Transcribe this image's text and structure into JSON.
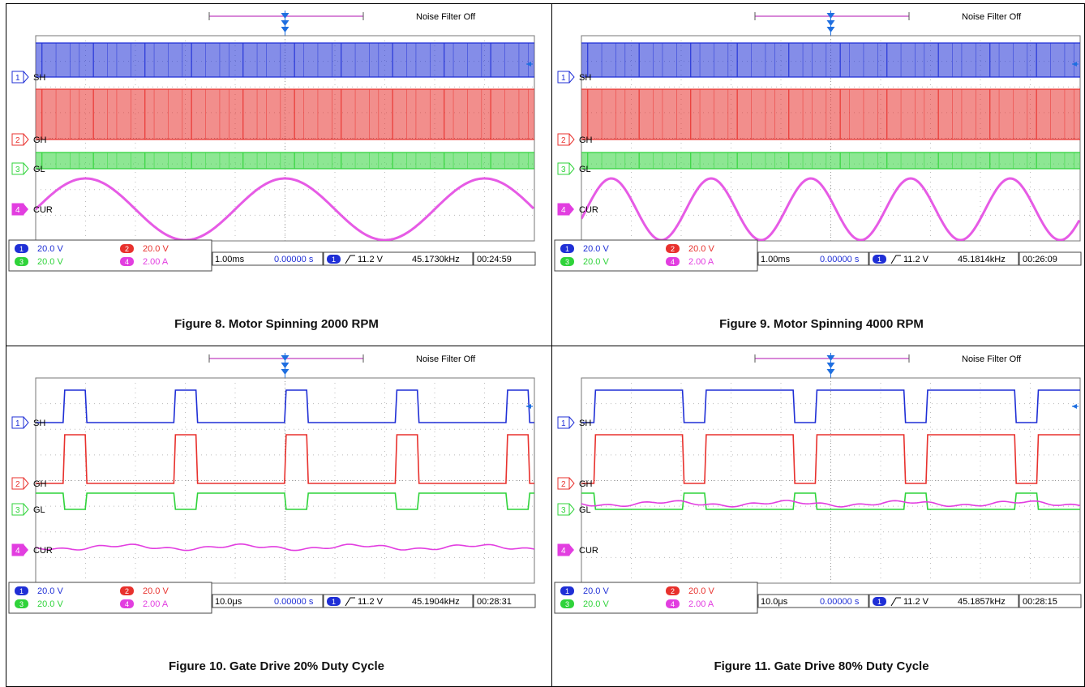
{
  "figures": [
    {
      "caption": "Figure 8. Motor Spinning 2000 RPM",
      "header": "Noise Filter Off",
      "timebase": "1.00ms",
      "delay": "0.00000 s",
      "trigger_channel": "1",
      "trigger_level": "11.2 V",
      "frequency": "45.1730kHz",
      "time": "00:24:59",
      "channels": [
        {
          "id": "1",
          "label": "SH",
          "scale": "20.0 V",
          "color": "#1f2fd6"
        },
        {
          "id": "2",
          "label": "GH",
          "scale": "20.0 V",
          "color": "#e8312d"
        },
        {
          "id": "3",
          "label": "GL",
          "scale": "20.0 V",
          "color": "#2fd33a"
        },
        {
          "id": "4",
          "label": "CUR",
          "scale": "2.00 A",
          "color": "#e23ee0"
        }
      ]
    },
    {
      "caption": "Figure 9. Motor Spinning 4000 RPM",
      "header": "Noise Filter Off",
      "timebase": "1.00ms",
      "delay": "0.00000 s",
      "trigger_channel": "1",
      "trigger_level": "11.2 V",
      "frequency": "45.1814kHz",
      "time": "00:26:09",
      "channels": [
        {
          "id": "1",
          "label": "SH",
          "scale": "20.0 V",
          "color": "#1f2fd6"
        },
        {
          "id": "2",
          "label": "GH",
          "scale": "20.0 V",
          "color": "#e8312d"
        },
        {
          "id": "3",
          "label": "GL",
          "scale": "20.0 V",
          "color": "#2fd33a"
        },
        {
          "id": "4",
          "label": "CUR",
          "scale": "2.00 A",
          "color": "#e23ee0"
        }
      ]
    },
    {
      "caption": "Figure 10. Gate Drive 20% Duty Cycle",
      "header": "Noise Filter Off",
      "timebase": "10.0μs",
      "delay": "0.00000 s",
      "trigger_channel": "1",
      "trigger_level": "11.2 V",
      "frequency": "45.1904kHz",
      "time": "00:28:31",
      "channels": [
        {
          "id": "1",
          "label": "SH",
          "scale": "20.0 V",
          "color": "#1f2fd6"
        },
        {
          "id": "2",
          "label": "GH",
          "scale": "20.0 V",
          "color": "#e8312d"
        },
        {
          "id": "3",
          "label": "GL",
          "scale": "20.0 V",
          "color": "#2fd33a"
        },
        {
          "id": "4",
          "label": "CUR",
          "scale": "2.00 A",
          "color": "#e23ee0"
        }
      ]
    },
    {
      "caption": "Figure 11. Gate Drive 80% Duty Cycle",
      "header": "Noise Filter Off",
      "timebase": "10.0μs",
      "delay": "0.00000 s",
      "trigger_channel": "1",
      "trigger_level": "11.2 V",
      "frequency": "45.1857kHz",
      "time": "00:28:15",
      "channels": [
        {
          "id": "1",
          "label": "SH",
          "scale": "20.0 V",
          "color": "#1f2fd6"
        },
        {
          "id": "2",
          "label": "GH",
          "scale": "20.0 V",
          "color": "#e8312d"
        },
        {
          "id": "3",
          "label": "GL",
          "scale": "20.0 V",
          "color": "#2fd33a"
        },
        {
          "id": "4",
          "label": "CUR",
          "scale": "2.00 A",
          "color": "#e23ee0"
        }
      ]
    }
  ],
  "chart_data": [
    {
      "type": "line",
      "title": "Figure 8. Motor Spinning 2000 RPM",
      "x_unit_per_div": "1.00ms",
      "x_divisions": 10,
      "series": [
        {
          "name": "SH",
          "kind": "dense-pwm",
          "duty": 0.5
        },
        {
          "name": "GH",
          "kind": "dense-pwm",
          "duty": 0.5
        },
        {
          "name": "GL",
          "kind": "dense-pwm",
          "duty": 0.5
        },
        {
          "name": "CUR",
          "kind": "sine",
          "cycles_on_screen": 2.5,
          "phase": 0.25
        }
      ]
    },
    {
      "type": "line",
      "title": "Figure 9. Motor Spinning 4000 RPM",
      "x_unit_per_div": "1.00ms",
      "x_divisions": 10,
      "series": [
        {
          "name": "SH",
          "kind": "dense-pwm",
          "duty": 0.5
        },
        {
          "name": "GH",
          "kind": "dense-pwm",
          "duty": 0.5
        },
        {
          "name": "GL",
          "kind": "dense-pwm",
          "duty": 0.5
        },
        {
          "name": "CUR",
          "kind": "sine",
          "cycles_on_screen": 5,
          "phase": 0.3
        }
      ]
    },
    {
      "type": "line",
      "title": "Figure 10. Gate Drive 20% Duty Cycle",
      "x_unit_per_div": "10.0μs",
      "x_divisions": 10,
      "series": [
        {
          "name": "SH",
          "kind": "pwm",
          "duty": 0.2,
          "period_div": 2.22,
          "offset_div": 0.55
        },
        {
          "name": "GH",
          "kind": "pwm",
          "duty": 0.2,
          "period_div": 2.22,
          "offset_div": 0.55
        },
        {
          "name": "GL",
          "kind": "pwm-inverted",
          "duty": 0.2,
          "period_div": 2.22,
          "offset_div": 0.55
        },
        {
          "name": "CUR",
          "kind": "flat-ripple",
          "level_div": -2.6
        }
      ]
    },
    {
      "type": "line",
      "title": "Figure 11. Gate Drive 80% Duty Cycle",
      "x_unit_per_div": "10.0μs",
      "x_divisions": 10,
      "series": [
        {
          "name": "SH",
          "kind": "pwm",
          "duty": 0.8,
          "period_div": 2.22,
          "offset_div": 0.25
        },
        {
          "name": "GH",
          "kind": "pwm",
          "duty": 0.8,
          "period_div": 2.22,
          "offset_div": 0.25
        },
        {
          "name": "GL",
          "kind": "pwm-inverted",
          "duty": 0.8,
          "period_div": 2.22,
          "offset_div": 0.25
        },
        {
          "name": "CUR",
          "kind": "flat-ripple",
          "level_div": -0.9
        }
      ]
    }
  ]
}
